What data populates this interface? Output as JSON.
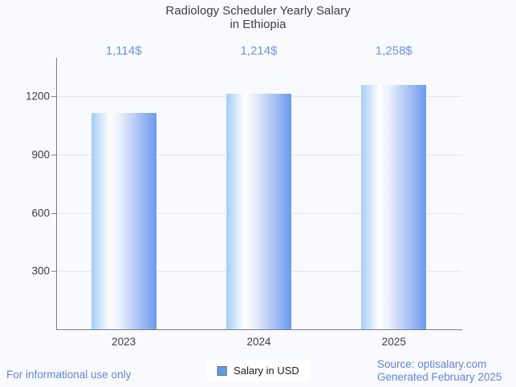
{
  "title": {
    "line1": "Radiology Scheduler Yearly Salary",
    "line2": "in Ethiopia"
  },
  "chart_data": {
    "type": "bar",
    "categories": [
      "2023",
      "2024",
      "2025"
    ],
    "series": [
      {
        "name": "Salary in USD",
        "values": [
          1114,
          1214,
          1258
        ]
      }
    ],
    "annotations": [
      "1,114$",
      "1,214$",
      "1,258$"
    ],
    "ylim": [
      0,
      1400
    ],
    "yticks": [
      300,
      600,
      900,
      1200
    ],
    "grid": true,
    "legend_position": "bottom"
  },
  "legend": {
    "label": "Salary in USD"
  },
  "footer": {
    "disclaimer": "For informational use only",
    "source": "Source: optisalary.com",
    "generated": "Generated February 2025"
  },
  "colors": {
    "accent_blue": "#6a92e8",
    "footer_blue": "#6384dd",
    "bar_left": "#a3cdf8",
    "bar_mid": "#ffffff",
    "bar_right": "#6d99ee",
    "legend_swatch": "#5f9ce8",
    "axis": "#7d8084",
    "gridline": "#e5e7ea",
    "title_text": "#3e4044",
    "background": "#f9fafd"
  }
}
